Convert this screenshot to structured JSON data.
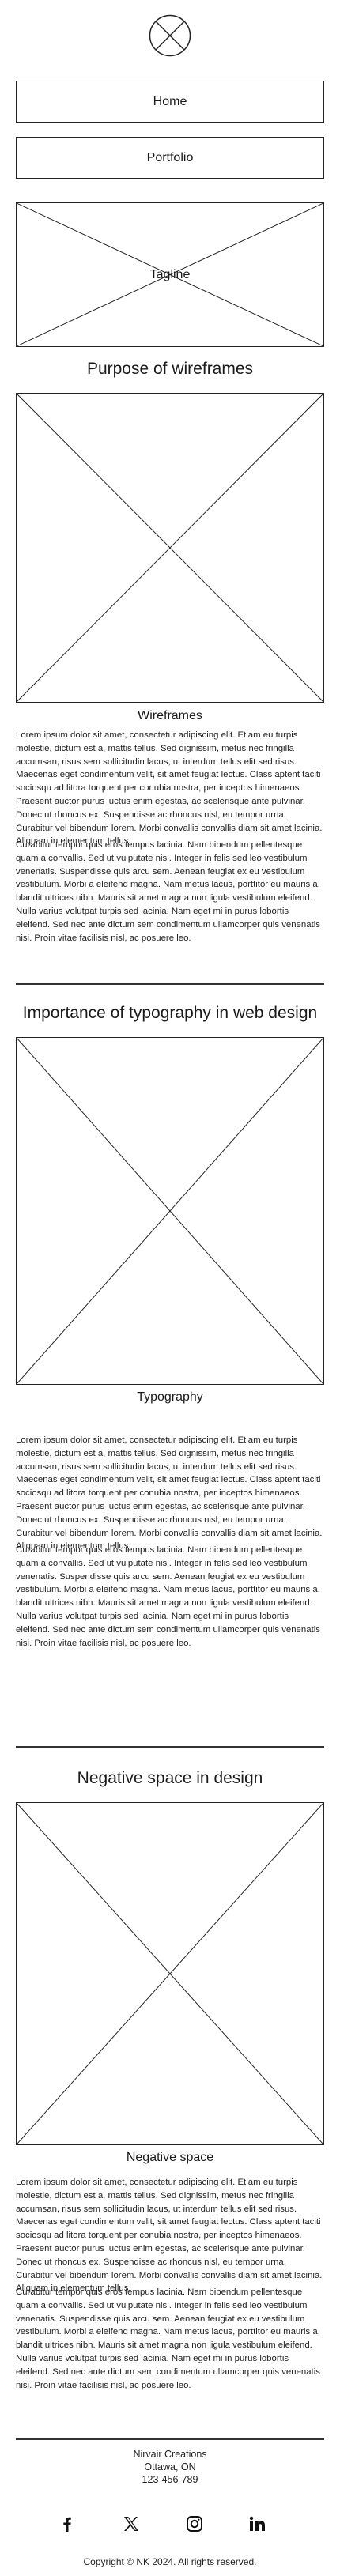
{
  "header": {
    "logo_icon": "placeholder-circle-x-icon",
    "nav": [
      {
        "label": "Home"
      },
      {
        "label": "Portfolio"
      }
    ],
    "tagline": "Tagline"
  },
  "sections": [
    {
      "title": "Purpose of wireframes",
      "image_icon": "image-placeholder-icon",
      "caption": "Wireframes",
      "paragraphs": [
        "Lorem ipsum dolor sit amet, consectetur adipiscing elit. Etiam eu turpis molestie, dictum est a, mattis tellus. Sed dignissim, metus nec fringilla accumsan, risus sem sollicitudin lacus, ut interdum tellus elit sed risus. Maecenas eget condimentum velit, sit amet feugiat lectus. Class aptent taciti sociosqu ad litora torquent per conubia nostra, per inceptos himenaeos. Praesent auctor purus luctus enim egestas, ac scelerisque ante pulvinar. Donec ut rhoncus ex. Suspendisse ac rhoncus nisl, eu tempor urna. Curabitur vel bibendum lorem. Morbi convallis convallis diam sit amet lacinia. Aliquam in elementum tellus.",
        "Curabitur tempor quis eros tempus lacinia. Nam bibendum pellentesque quam a convallis. Sed ut vulputate nisi. Integer in felis sed leo vestibulum venenatis. Suspendisse quis arcu sem. Aenean feugiat ex eu vestibulum vestibulum. Morbi a eleifend magna. Nam metus lacus, porttitor eu mauris a, blandit ultrices nibh. Mauris sit amet magna non ligula vestibulum eleifend. Nulla varius volutpat turpis sed lacinia. Nam eget mi in purus lobortis eleifend. Sed nec ante dictum sem condimentum ullamcorper quis venenatis nisi. Proin vitae facilisis nisl, ac posuere leo."
      ]
    },
    {
      "title": "Importance of typography in web design",
      "image_icon": "image-placeholder-icon",
      "caption": "Typography",
      "paragraphs": [
        "Lorem ipsum dolor sit amet, consectetur adipiscing elit. Etiam eu turpis molestie, dictum est a, mattis tellus. Sed dignissim, metus nec fringilla accumsan, risus sem sollicitudin lacus, ut interdum tellus elit sed risus. Maecenas eget condimentum velit, sit amet feugiat lectus. Class aptent taciti sociosqu ad litora torquent per conubia nostra, per inceptos himenaeos. Praesent auctor purus luctus enim egestas, ac scelerisque ante pulvinar. Donec ut rhoncus ex. Suspendisse ac rhoncus nisl, eu tempor urna. Curabitur vel bibendum lorem. Morbi convallis convallis diam sit amet lacinia. Aliquam in elementum tellus.",
        "Curabitur tempor quis eros tempus lacinia. Nam bibendum pellentesque quam a convallis. Sed ut vulputate nisi. Integer in felis sed leo vestibulum venenatis. Suspendisse quis arcu sem. Aenean feugiat ex eu vestibulum vestibulum. Morbi a eleifend magna. Nam metus lacus, porttitor eu mauris a, blandit ultrices nibh. Mauris sit amet magna non ligula vestibulum eleifend. Nulla varius volutpat turpis sed lacinia. Nam eget mi in purus lobortis eleifend. Sed nec ante dictum sem condimentum ullamcorper quis venenatis nisi. Proin vitae facilisis nisl, ac posuere leo."
      ]
    },
    {
      "title": "Negative space in design",
      "image_icon": "image-placeholder-icon",
      "caption": "Negative space",
      "paragraphs": [
        "Lorem ipsum dolor sit amet, consectetur adipiscing elit. Etiam eu turpis molestie, dictum est a, mattis tellus. Sed dignissim, metus nec fringilla accumsan, risus sem sollicitudin lacus, ut interdum tellus elit sed risus. Maecenas eget condimentum velit, sit amet feugiat lectus. Class aptent taciti sociosqu ad litora torquent per conubia nostra, per inceptos himenaeos. Praesent auctor purus luctus enim egestas, ac scelerisque ante pulvinar. Donec ut rhoncus ex. Suspendisse ac rhoncus nisl, eu tempor urna. Curabitur vel bibendum lorem. Morbi convallis convallis diam sit amet lacinia. Aliquam in elementum tellus.",
        "Curabitur tempor quis eros tempus lacinia. Nam bibendum pellentesque quam a convallis. Sed ut vulputate nisi. Integer in felis sed leo vestibulum venenatis. Suspendisse quis arcu sem. Aenean feugiat ex eu vestibulum vestibulum. Morbi a eleifend magna. Nam metus lacus, porttitor eu mauris a, blandit ultrices nibh. Mauris sit amet magna non ligula vestibulum eleifend. Nulla varius volutpat turpis sed lacinia. Nam eget mi in purus lobortis eleifend. Sed nec ante dictum sem condimentum ullamcorper quis venenatis nisi. Proin vitae facilisis nisl, ac posuere leo."
      ]
    }
  ],
  "footer": {
    "company": "Nirvair Creations",
    "location": "Ottawa, ON",
    "phone": "123-456-789",
    "social": [
      "facebook-icon",
      "x-icon",
      "instagram-icon",
      "linkedin-icon"
    ],
    "copyright": "Copyright © NK 2024. All rights reserved."
  },
  "colors": {
    "background": "#ffffff",
    "line": "#222222",
    "text": "#1a1a1a"
  }
}
